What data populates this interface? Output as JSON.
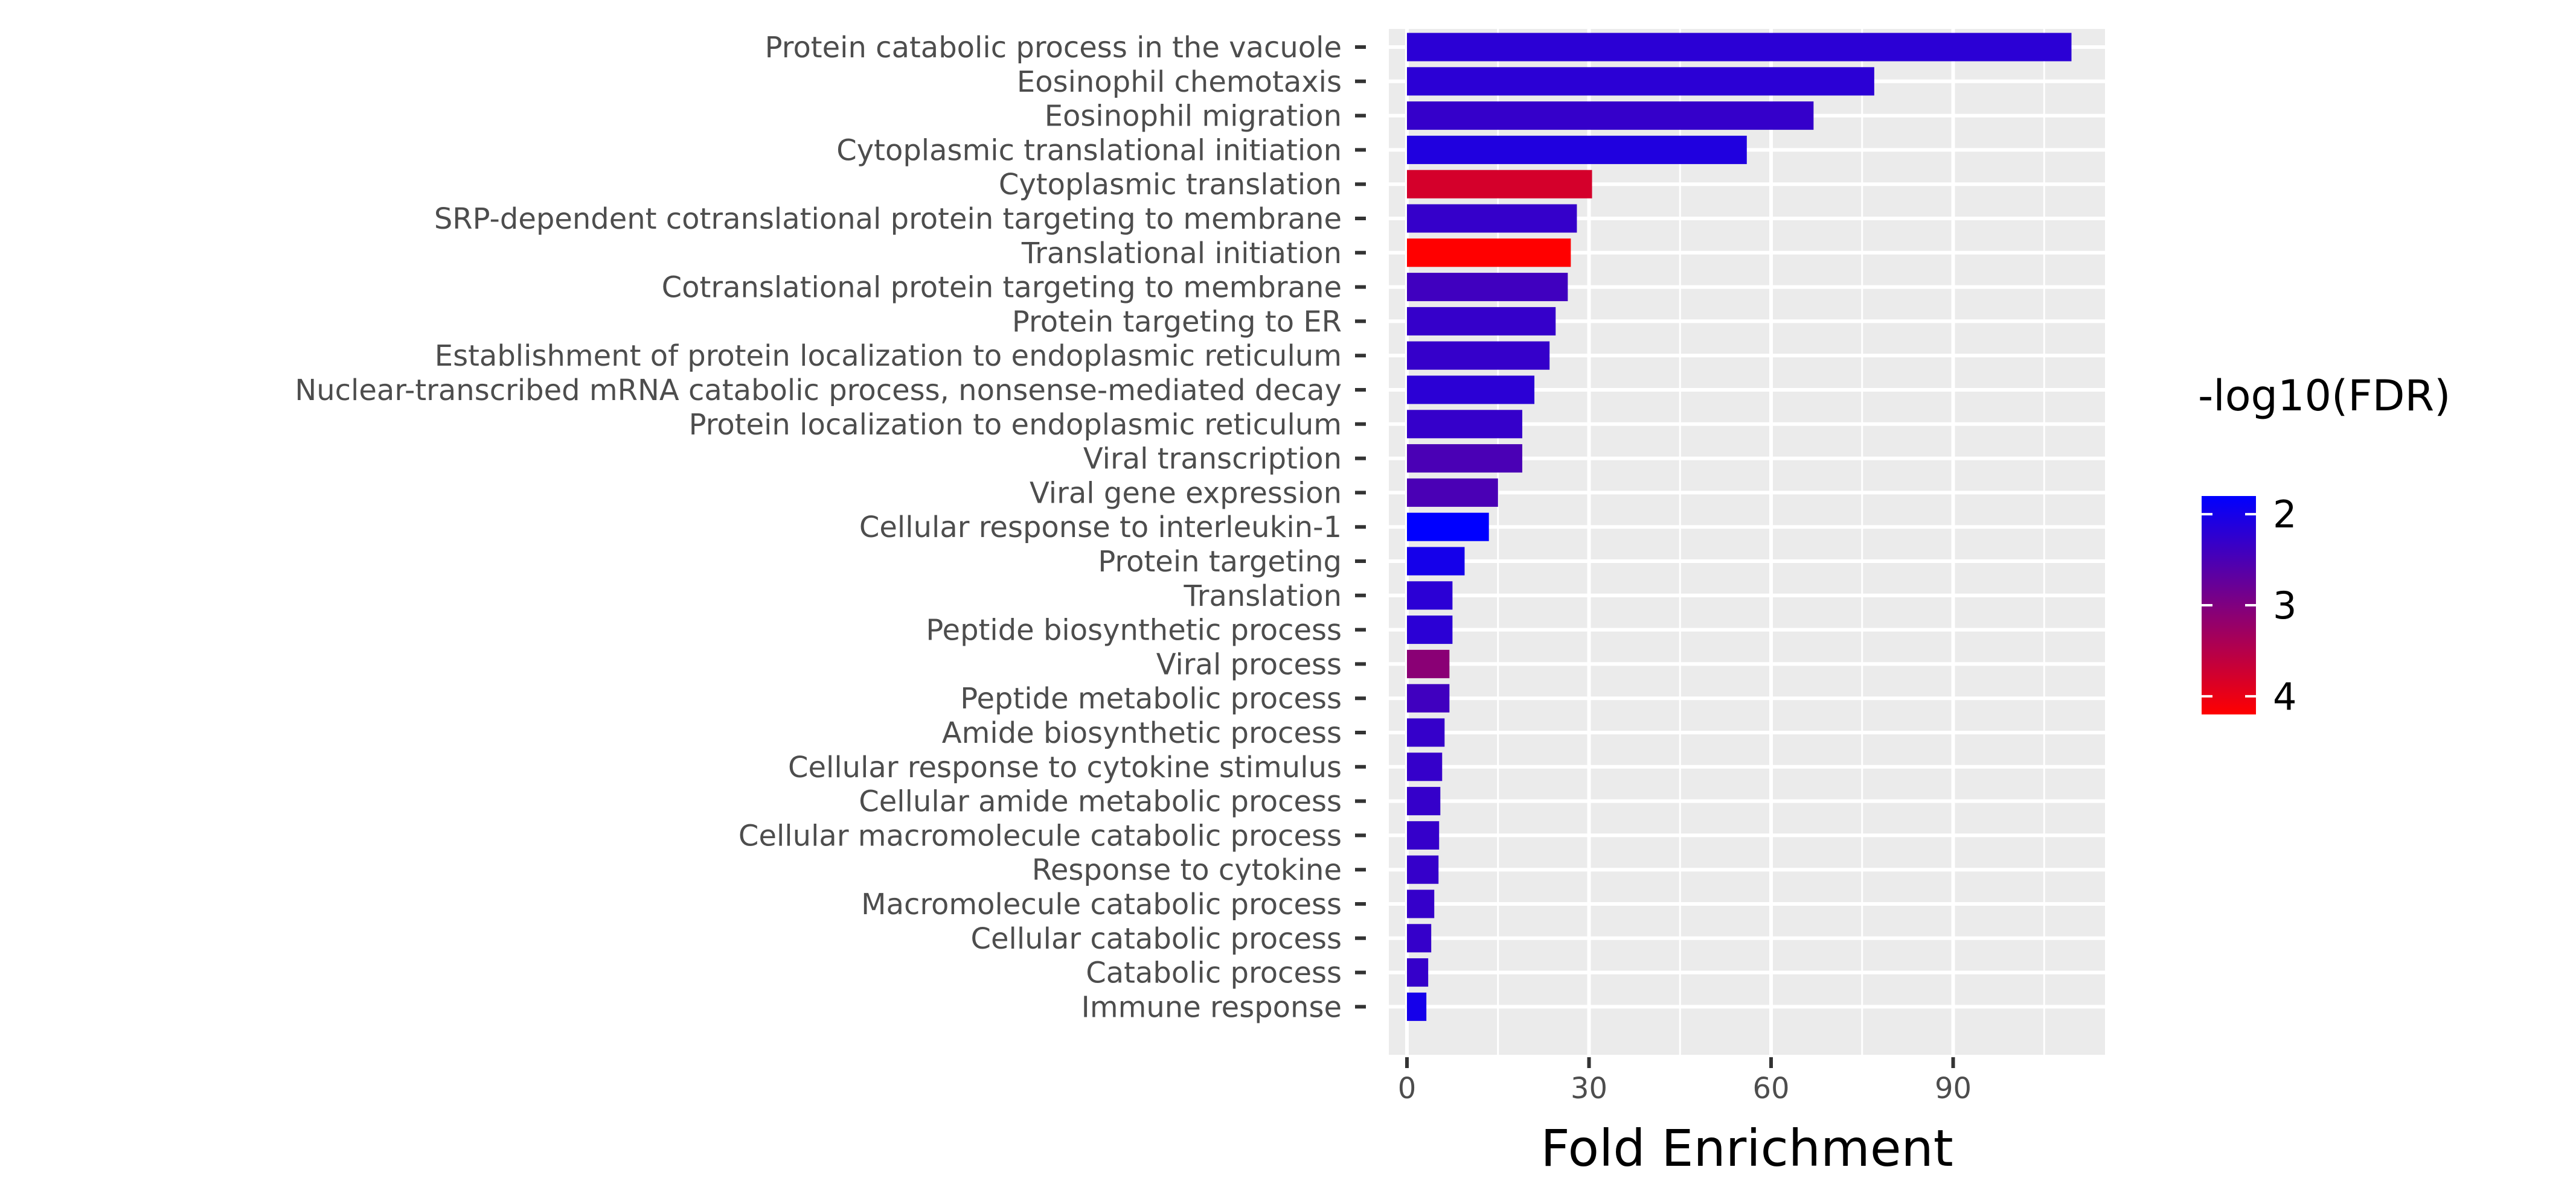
{
  "chart_data": {
    "type": "bar",
    "orientation": "horizontal",
    "xlabel": "Fold Enrichment",
    "ylabel": "",
    "xlim": [
      0,
      114
    ],
    "xticks": [
      0,
      30,
      60,
      90
    ],
    "grid": true,
    "categories": [
      "Protein catabolic process in the vacuole",
      "Eosinophil chemotaxis",
      "Eosinophil migration",
      "Cytoplasmic translational initiation",
      "Cytoplasmic translation",
      "SRP-dependent cotranslational protein targeting to membrane",
      "Translational initiation",
      "Cotranslational protein targeting to membrane",
      "Protein targeting to ER",
      "Establishment of protein localization to endoplasmic reticulum",
      "Nuclear-transcribed mRNA catabolic process, nonsense-mediated decay",
      "Protein localization to endoplasmic reticulum",
      "Viral transcription",
      "Viral gene expression",
      "Cellular response to interleukin-1",
      "Protein targeting",
      "Translation",
      "Peptide biosynthetic process",
      "Viral process",
      "Peptide metabolic process",
      "Amide biosynthetic process",
      "Cellular response to cytokine stimulus",
      "Cellular amide metabolic process",
      "Cellular macromolecule catabolic process",
      "Response to cytokine",
      "Macromolecule catabolic process",
      "Cellular catabolic process",
      "Catabolic process",
      "Immune response"
    ],
    "values": [
      109.5,
      77,
      67,
      56,
      30.5,
      28,
      27,
      26.5,
      24.5,
      23.5,
      21,
      19,
      19,
      15,
      13.5,
      9.5,
      7.5,
      7.5,
      7,
      7,
      6.2,
      5.8,
      5.5,
      5.3,
      5.2,
      4.5,
      4,
      3.5,
      3.2
    ],
    "color_values": [
      2.2,
      2.2,
      2.3,
      2.1,
      3.8,
      2.3,
      4.2,
      2.4,
      2.3,
      2.3,
      2.2,
      2.3,
      2.5,
      2.5,
      1.8,
      2.0,
      2.2,
      2.2,
      3.1,
      2.4,
      2.3,
      2.3,
      2.3,
      2.3,
      2.3,
      2.3,
      2.3,
      2.3,
      2.0
    ],
    "legend": {
      "title": "-log10(FDR)",
      "ticks": [
        2,
        3,
        4
      ],
      "range": [
        1.8,
        4.2
      ],
      "low_color": "#0000FF",
      "high_color": "#FF0000",
      "placement": "right"
    },
    "panel_background": "#EBEBEB",
    "grid_color": "#FFFFFF"
  }
}
